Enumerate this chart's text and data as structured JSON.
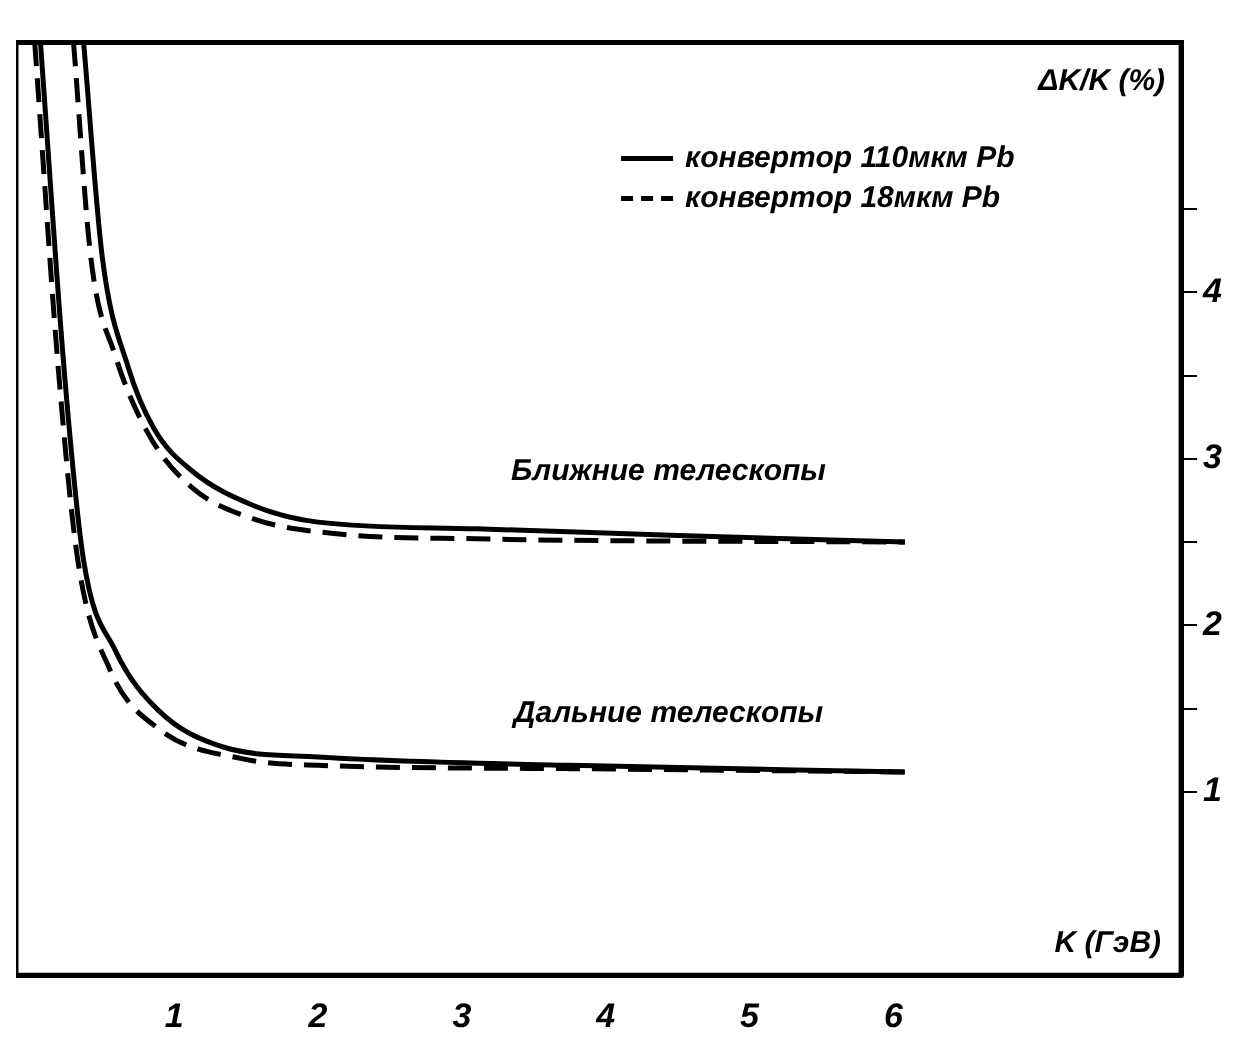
{
  "chart_data": {
    "type": "line",
    "xlabel": "K (ГэВ)",
    "ylabel": "ΔK/K (%)",
    "xlim": [
      -0.1,
      8
    ],
    "xticks": [
      1,
      2,
      3,
      4,
      5,
      6
    ],
    "ylim": [
      -0.1,
      5.5
    ],
    "yticks": [
      1,
      {
        "value": 1.5,
        "label": null
      },
      2,
      {
        "value": 2.5,
        "label": null
      },
      3,
      {
        "value": 3.5,
        "label": null
      },
      4,
      {
        "value": 4.5,
        "label": null
      }
    ],
    "grid": false,
    "legend": "top right",
    "marker": "none",
    "series": [
      {
        "name": "конвертор 110мкм Pb",
        "color": "#000000",
        "line_style": "solid",
        "x": [
          0.37,
          0.5,
          0.68,
          0.86,
          1.12,
          1.55,
          2.0,
          3.1,
          4.5,
          6.08
        ],
        "values": [
          5.5,
          4.21,
          3.55,
          3.18,
          2.93,
          2.72,
          2.62,
          2.58,
          2.54,
          2.5
        ]
      },
      {
        "name": "конвертор 18мкм Pb",
        "color": "#000000",
        "line_style": "dashed",
        "x": [
          0.3,
          0.42,
          0.59,
          0.82,
          1.12,
          1.55,
          2.13,
          3.1,
          6.08
        ],
        "values": [
          5.5,
          4.21,
          3.62,
          3.15,
          2.83,
          2.64,
          2.55,
          2.52,
          2.5
        ]
      },
      {
        "color": "#000000",
        "line_style": "solid",
        "x": [
          0.07,
          0.24,
          0.37,
          0.59,
          0.89,
          1.34,
          2.0,
          3.75,
          6.08
        ],
        "values": [
          5.5,
          3.48,
          2.39,
          1.85,
          1.49,
          1.27,
          1.21,
          1.16,
          1.12
        ]
      },
      {
        "color": "#000000",
        "line_style": "dashed",
        "x": [
          0.03,
          0.2,
          0.33,
          0.55,
          0.89,
          1.47,
          2.0,
          3.75,
          6.08
        ],
        "values": [
          5.5,
          3.48,
          2.39,
          1.74,
          1.38,
          1.2,
          1.16,
          1.14,
          1.12
        ]
      }
    ],
    "annotations": [
      "Ближние телескопы",
      "Дальние телескопы"
    ]
  }
}
